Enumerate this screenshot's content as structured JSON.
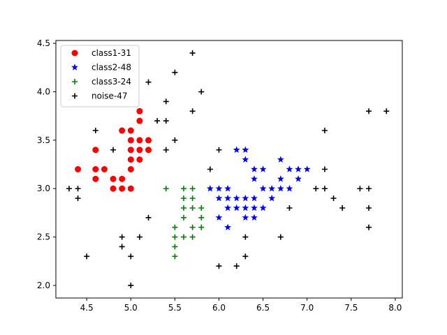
{
  "chart_data": {
    "type": "scatter",
    "title": "",
    "xlabel": "",
    "ylabel": "",
    "xlim": [
      4.15,
      8.08
    ],
    "ylim": [
      1.87,
      4.53
    ],
    "xticks": [
      "4.5",
      "5.0",
      "5.5",
      "6.0",
      "6.5",
      "7.0",
      "7.5",
      "8.0"
    ],
    "yticks": [
      "2.0",
      "2.5",
      "3.0",
      "3.5",
      "4.0",
      "4.5"
    ],
    "grid": false,
    "legend_position": "top-left",
    "series": [
      {
        "name": "class1-31",
        "marker": "circle",
        "color": "#ff0000",
        "points": [
          [
            4.4,
            3.2
          ],
          [
            4.6,
            3.4
          ],
          [
            4.6,
            3.2
          ],
          [
            4.6,
            3.1
          ],
          [
            4.7,
            3.2
          ],
          [
            4.8,
            3.1
          ],
          [
            4.8,
            3.0
          ],
          [
            4.9,
            3.6
          ],
          [
            4.9,
            3.1
          ],
          [
            4.9,
            3.0
          ],
          [
            5.0,
            3.6
          ],
          [
            5.0,
            3.5
          ],
          [
            5.0,
            3.4
          ],
          [
            5.0,
            3.3
          ],
          [
            5.0,
            3.2
          ],
          [
            5.0,
            3.0
          ],
          [
            5.1,
            3.8
          ],
          [
            5.1,
            3.7
          ],
          [
            5.1,
            3.5
          ],
          [
            5.1,
            3.4
          ],
          [
            5.1,
            3.3
          ],
          [
            5.2,
            3.5
          ],
          [
            5.2,
            3.4
          ]
        ]
      },
      {
        "name": "class2-48",
        "marker": "star",
        "color": "#0000ff",
        "points": [
          [
            5.9,
            3.0
          ],
          [
            6.0,
            3.0
          ],
          [
            6.0,
            2.9
          ],
          [
            6.0,
            2.7
          ],
          [
            6.1,
            3.0
          ],
          [
            6.1,
            2.9
          ],
          [
            6.1,
            2.8
          ],
          [
            6.1,
            2.6
          ],
          [
            6.2,
            3.4
          ],
          [
            6.2,
            2.9
          ],
          [
            6.2,
            2.8
          ],
          [
            6.3,
            3.4
          ],
          [
            6.3,
            3.3
          ],
          [
            6.3,
            2.9
          ],
          [
            6.3,
            2.8
          ],
          [
            6.3,
            2.7
          ],
          [
            6.4,
            3.2
          ],
          [
            6.4,
            3.1
          ],
          [
            6.4,
            2.9
          ],
          [
            6.4,
            2.8
          ],
          [
            6.4,
            2.7
          ],
          [
            6.5,
            3.2
          ],
          [
            6.5,
            3.0
          ],
          [
            6.5,
            2.8
          ],
          [
            6.6,
            3.0
          ],
          [
            6.6,
            2.9
          ],
          [
            6.7,
            3.3
          ],
          [
            6.7,
            3.1
          ],
          [
            6.7,
            3.0
          ],
          [
            6.8,
            3.2
          ],
          [
            6.8,
            3.0
          ],
          [
            6.9,
            3.2
          ],
          [
            6.9,
            3.1
          ],
          [
            7.0,
            3.2
          ]
        ]
      },
      {
        "name": "class3-24",
        "marker": "plus",
        "color": "#008000",
        "points": [
          [
            5.4,
            3.0
          ],
          [
            5.5,
            2.6
          ],
          [
            5.5,
            2.5
          ],
          [
            5.5,
            2.4
          ],
          [
            5.5,
            2.3
          ],
          [
            5.6,
            3.0
          ],
          [
            5.6,
            2.9
          ],
          [
            5.6,
            2.8
          ],
          [
            5.6,
            2.7
          ],
          [
            5.6,
            2.5
          ],
          [
            5.7,
            3.0
          ],
          [
            5.7,
            2.9
          ],
          [
            5.7,
            2.8
          ],
          [
            5.7,
            2.6
          ],
          [
            5.7,
            2.5
          ],
          [
            5.8,
            2.8
          ],
          [
            5.8,
            2.7
          ],
          [
            5.8,
            2.6
          ]
        ]
      },
      {
        "name": "noise-47",
        "marker": "plus",
        "color": "#000000",
        "points": [
          [
            4.3,
            3.0
          ],
          [
            4.4,
            3.0
          ],
          [
            4.4,
            2.9
          ],
          [
            4.5,
            2.3
          ],
          [
            4.6,
            3.6
          ],
          [
            4.8,
            3.4
          ],
          [
            4.9,
            2.5
          ],
          [
            4.9,
            2.4
          ],
          [
            5.0,
            2.3
          ],
          [
            5.0,
            2.0
          ],
          [
            5.1,
            2.5
          ],
          [
            5.2,
            4.1
          ],
          [
            5.2,
            2.7
          ],
          [
            5.3,
            3.7
          ],
          [
            5.4,
            3.9
          ],
          [
            5.4,
            3.7
          ],
          [
            5.4,
            3.4
          ],
          [
            5.5,
            4.2
          ],
          [
            5.5,
            3.5
          ],
          [
            5.7,
            4.4
          ],
          [
            5.7,
            3.8
          ],
          [
            5.8,
            4.0
          ],
          [
            5.9,
            3.2
          ],
          [
            6.0,
            3.4
          ],
          [
            6.0,
            2.2
          ],
          [
            6.2,
            2.2
          ],
          [
            6.3,
            2.5
          ],
          [
            6.3,
            2.3
          ],
          [
            6.7,
            2.5
          ],
          [
            6.8,
            2.8
          ],
          [
            7.1,
            3.0
          ],
          [
            7.2,
            3.6
          ],
          [
            7.2,
            3.2
          ],
          [
            7.2,
            3.0
          ],
          [
            7.3,
            2.9
          ],
          [
            7.4,
            2.8
          ],
          [
            7.6,
            3.0
          ],
          [
            7.7,
            3.8
          ],
          [
            7.7,
            3.0
          ],
          [
            7.7,
            2.8
          ],
          [
            7.7,
            2.6
          ],
          [
            7.9,
            3.8
          ]
        ]
      }
    ]
  }
}
